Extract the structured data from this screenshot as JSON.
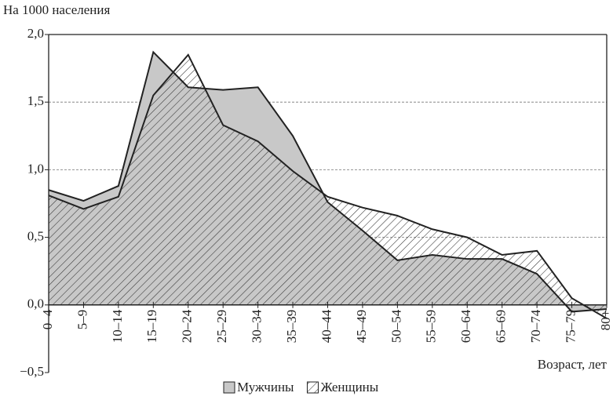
{
  "chart_data": {
    "type": "area",
    "y_label": "На 1000 населения",
    "x_label": "Возраст, лет",
    "categories": [
      "0–4",
      "5–9",
      "10–14",
      "15–19",
      "20–24",
      "25–29",
      "30–34",
      "35–39",
      "40–44",
      "45–49",
      "50–54",
      "55–59",
      "60–64",
      "65–69",
      "70–74",
      "75–79",
      "80+"
    ],
    "series": [
      {
        "name": "Мужчины",
        "color": "#c8c8c8",
        "fill": "solid",
        "values": [
          0.85,
          0.77,
          0.88,
          1.87,
          1.61,
          1.59,
          1.61,
          1.25,
          0.76,
          0.55,
          0.33,
          0.37,
          0.34,
          0.34,
          0.23,
          -0.05,
          -0.03
        ]
      },
      {
        "name": "Женщины",
        "color": "#333333",
        "fill": "hatch",
        "values": [
          0.81,
          0.71,
          0.8,
          1.55,
          1.85,
          1.33,
          1.21,
          0.99,
          0.8,
          0.72,
          0.66,
          0.56,
          0.5,
          0.37,
          0.4,
          0.05,
          -0.1
        ]
      }
    ],
    "ylim": [
      -0.5,
      2.0
    ],
    "yticks": [
      {
        "value": -0.5,
        "label": "−0,5"
      },
      {
        "value": 0,
        "label": "0,0"
      },
      {
        "value": 0.5,
        "label": "0,5"
      },
      {
        "value": 1.0,
        "label": "1,0"
      },
      {
        "value": 1.5,
        "label": "1,5"
      },
      {
        "value": 2.0,
        "label": "2,0"
      }
    ],
    "grid": true
  }
}
